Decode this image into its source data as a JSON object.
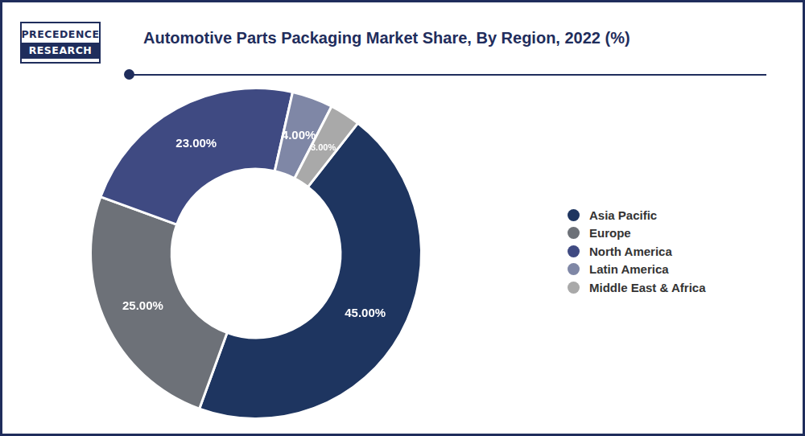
{
  "logo": "PRECEDENCE RESEARCH",
  "chart_data": {
    "type": "doughnut",
    "title": "Automotive Parts Packaging Market Share, By Region, 2022 (%)",
    "categories": [
      "Asia Pacific",
      "Europe",
      "North America",
      "Latin America",
      "Middle East & Africa"
    ],
    "values": [
      45,
      25,
      23,
      4,
      3
    ],
    "value_labels": [
      "45.00%",
      "25.00%",
      "23.00%",
      "4.00%",
      "3.00%"
    ],
    "colors": [
      "#1e3560",
      "#6d7178",
      "#3f4a82",
      "#7f87a6",
      "#a9a9a9"
    ],
    "data_labels": true,
    "legend": "right"
  }
}
